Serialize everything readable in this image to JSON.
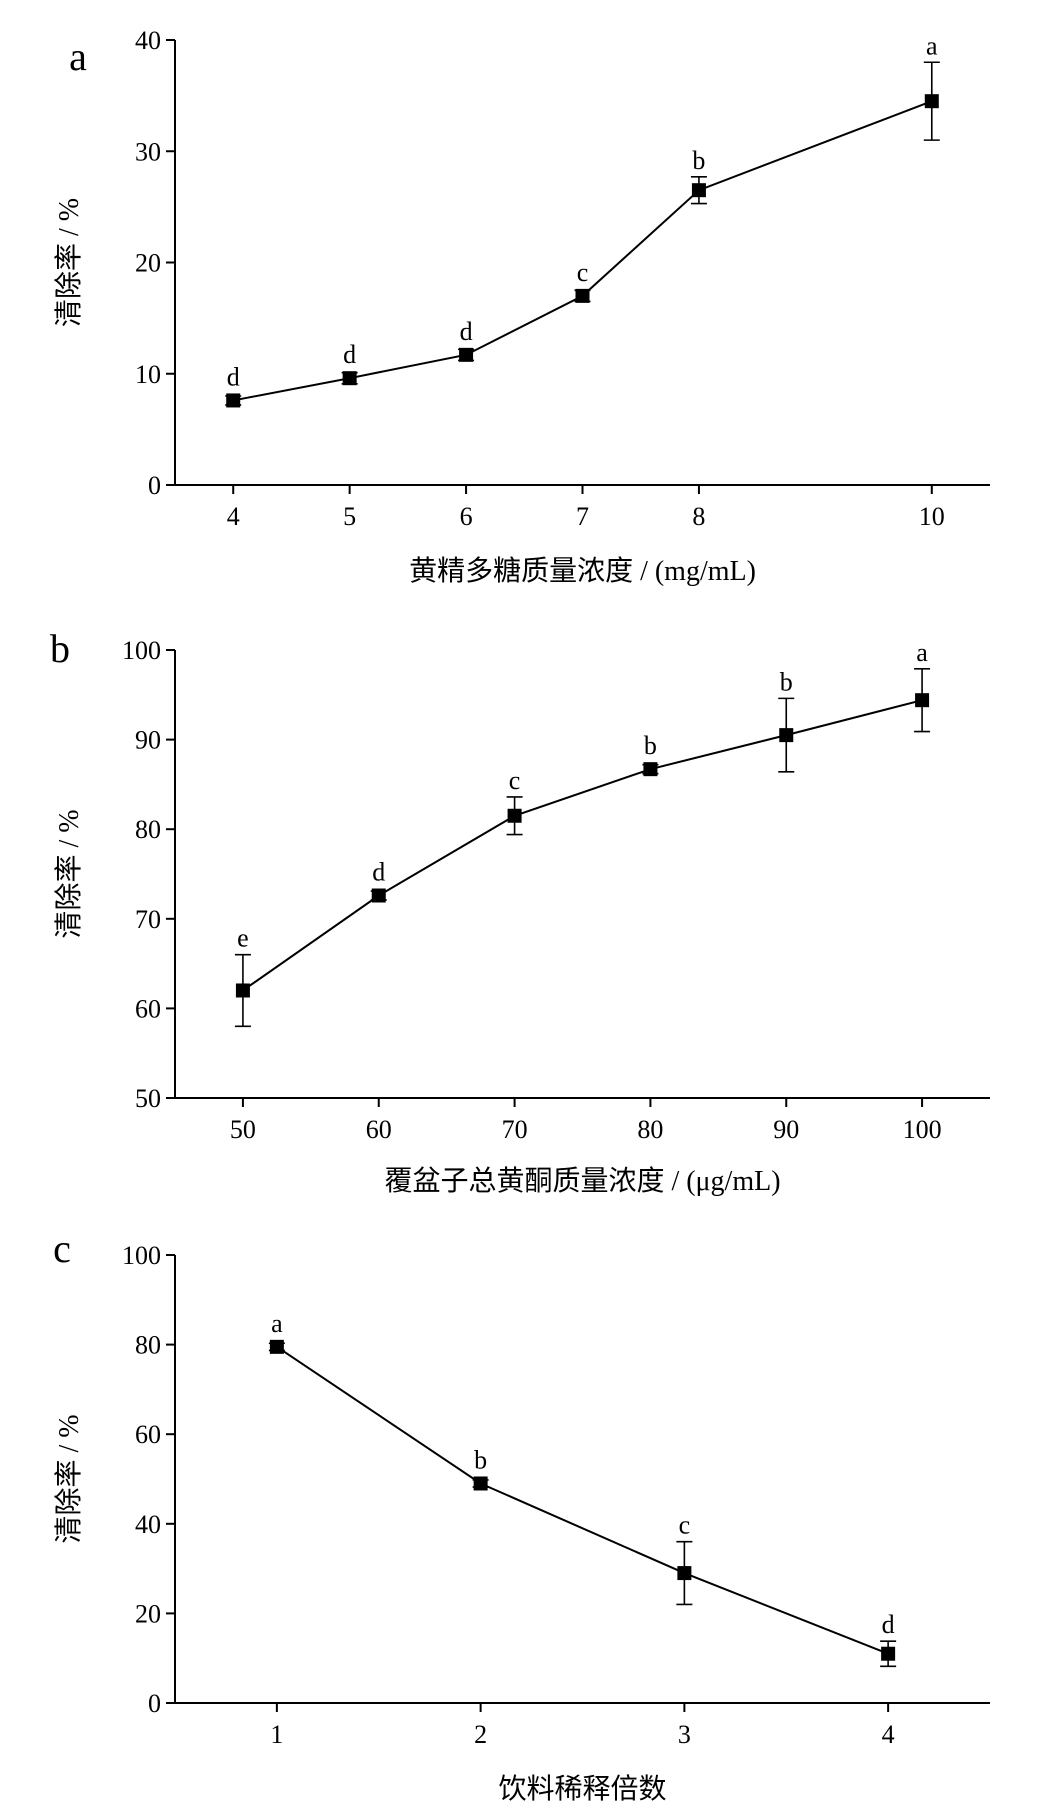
{
  "chart_data": [
    {
      "type": "line",
      "panel_label": "a",
      "x": [
        4,
        5,
        6,
        7,
        8,
        10
      ],
      "x_tick_labels": [
        "4",
        "5",
        "6",
        "7",
        "8",
        "10"
      ],
      "series": [
        {
          "values": [
            7.6,
            9.6,
            11.7,
            17.0,
            26.5,
            34.5
          ],
          "error": [
            0.4,
            0.5,
            0.5,
            0.5,
            1.2,
            3.5
          ],
          "significance": [
            "d",
            "d",
            "d",
            "c",
            "b",
            "a"
          ]
        }
      ],
      "xlabel": "黄精多糖质量浓度 / (mg/mL)",
      "ylabel": "清除率 / %",
      "ylim": [
        0,
        40
      ],
      "yticks": [
        0,
        10,
        20,
        30,
        40
      ],
      "grid": false
    },
    {
      "type": "line",
      "panel_label": "b",
      "x": [
        50,
        60,
        70,
        80,
        90,
        100
      ],
      "x_tick_labels": [
        "50",
        "60",
        "70",
        "80",
        "90",
        "100"
      ],
      "series": [
        {
          "values": [
            62.0,
            72.6,
            81.5,
            86.7,
            90.5,
            94.4
          ],
          "error": [
            4.0,
            0.5,
            2.1,
            0.5,
            4.1,
            3.5
          ],
          "significance": [
            "e",
            "d",
            "c",
            "b",
            "b",
            "a"
          ]
        }
      ],
      "xlabel": "覆盆子总黄酮质量浓度 / (μg/mL)",
      "ylabel": "清除率 / %",
      "ylim": [
        50,
        100
      ],
      "yticks": [
        50,
        60,
        70,
        80,
        90,
        100
      ],
      "grid": false
    },
    {
      "type": "line",
      "panel_label": "c",
      "x": [
        1,
        2,
        3,
        4
      ],
      "x_tick_labels": [
        "1",
        "2",
        "3",
        "4"
      ],
      "series": [
        {
          "values": [
            79.5,
            49.0,
            29.0,
            11.0
          ],
          "error": [
            0.8,
            0.8,
            7.0,
            2.8
          ],
          "significance": [
            "a",
            "b",
            "c",
            "d"
          ]
        }
      ],
      "xlabel": "饮料稀释倍数",
      "ylabel": "清除率 / %",
      "ylim": [
        0,
        100
      ],
      "yticks": [
        0,
        20,
        40,
        60,
        80,
        100
      ],
      "grid": false
    }
  ]
}
